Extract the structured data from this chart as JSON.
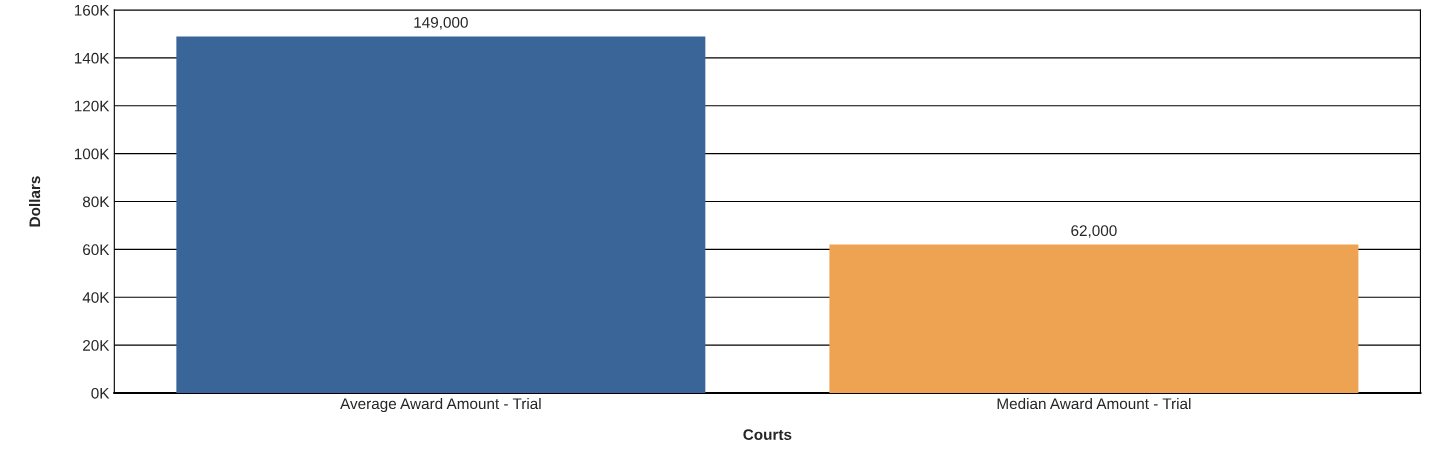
{
  "chart_data": {
    "type": "bar",
    "xlabel": "Courts",
    "ylabel": "Dollars",
    "categories": [
      "Average Award Amount - Trial",
      "Median Award Amount - Trial"
    ],
    "values": [
      149000,
      62000
    ],
    "colors": [
      "#3a6598",
      "#eea352"
    ],
    "value_labels": [
      "149,000",
      "62,000"
    ],
    "ylim": [
      0,
      160000
    ],
    "yticks": [
      {
        "value": 0,
        "label": "0K"
      },
      {
        "value": 20000,
        "label": "20K"
      },
      {
        "value": 40000,
        "label": "40K"
      },
      {
        "value": 60000,
        "label": "60K"
      },
      {
        "value": 80000,
        "label": "80K"
      },
      {
        "value": 100000,
        "label": "100K"
      },
      {
        "value": 120000,
        "label": "120K"
      },
      {
        "value": 140000,
        "label": "140K"
      },
      {
        "value": 160000,
        "label": "160K"
      }
    ],
    "grid": "y"
  }
}
